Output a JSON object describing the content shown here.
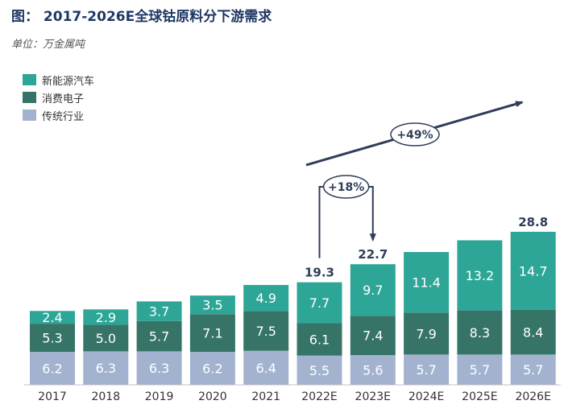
{
  "chart_data": {
    "type": "bar",
    "stacked": true,
    "title": "图： 2017-2026E全球钴原料分下游需求",
    "unit_label": "单位：万金属吨",
    "categories": [
      "2017",
      "2018",
      "2019",
      "2020",
      "2021",
      "2022E",
      "2023E",
      "2024E",
      "2025E",
      "2026E"
    ],
    "series": [
      {
        "name": "传统行业",
        "color": "#a3b3cf",
        "values": [
          6.2,
          6.3,
          6.3,
          6.2,
          6.4,
          5.5,
          5.6,
          5.7,
          5.7,
          5.7
        ]
      },
      {
        "name": "消费电子",
        "color": "#357466",
        "values": [
          5.3,
          5.0,
          5.7,
          7.1,
          7.5,
          6.1,
          7.4,
          7.9,
          8.3,
          8.4
        ]
      },
      {
        "name": "新能源汽车",
        "color": "#2ea697",
        "values": [
          2.4,
          2.9,
          3.7,
          3.5,
          4.9,
          7.7,
          9.7,
          11.4,
          13.2,
          14.7
        ]
      }
    ],
    "totals": [
      {
        "category": "2022E",
        "value": "19.3"
      },
      {
        "category": "2023E",
        "value": "22.7"
      },
      {
        "category": "2026E",
        "value": "28.8"
      }
    ],
    "annotations": [
      {
        "text": "+18%",
        "from": "2022E",
        "to": "2023E"
      },
      {
        "text": "+49%",
        "from": "2022E",
        "to": "2026E"
      }
    ],
    "legend_order": [
      "新能源汽车",
      "消费电子",
      "传统行业"
    ],
    "ylim": [
      0,
      30
    ],
    "grid": false
  }
}
